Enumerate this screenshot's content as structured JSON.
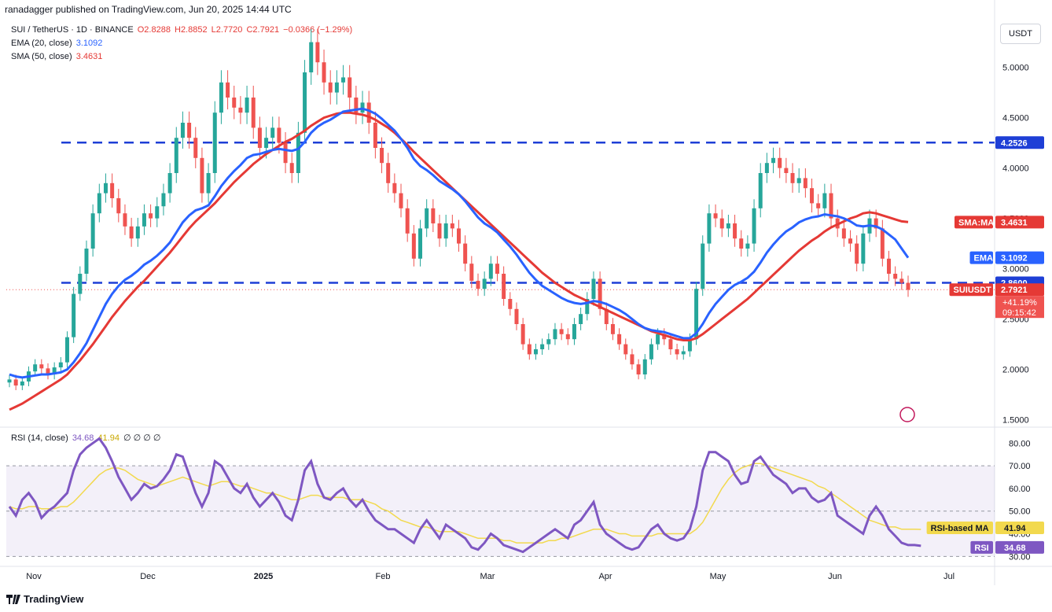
{
  "header": "ranadagger published on TradingView.com, Jun 20, 2025 14:44 UTC",
  "legend": {
    "symbol": "SUI / TetherUS · 1D · BINANCE",
    "open": "O2.8288",
    "high": "H2.8852",
    "low": "L2.7720",
    "close": "C2.7921",
    "change": "−0.0366 (−1.29%)",
    "ema_label": "EMA (20, close)",
    "ema_value": "3.1092",
    "sma_label": "SMA (50, close)",
    "sma_value": "3.4631",
    "rsi_label": "RSI (14, close)",
    "rsi_value": "34.68",
    "rsi_ma_value": "41.94",
    "rsi_extra": "∅ ∅ ∅ ∅"
  },
  "currency": "USDT",
  "footer": "TradingView",
  "colors": {
    "up": "#26a69a",
    "down": "#ef5350",
    "ema": "#2962ff",
    "sma": "#e53935",
    "rsi": "#7e57c2",
    "rsi_ma": "#f2d94e",
    "level": "#1e3fd6"
  },
  "chart_data": {
    "type": "candlestick",
    "x_labels": [
      "Nov",
      "Dec",
      "2025",
      "Feb",
      "Mar",
      "Apr",
      "May",
      "Jun",
      "Jul"
    ],
    "price_ticks": [
      "5.0000",
      "4.5000",
      "4.0000",
      "3.5000",
      "3.0000",
      "2.5000",
      "2.0000",
      "1.5000"
    ],
    "ylim": [
      1.45,
      5.45
    ],
    "horizontal_levels": [
      4.2526,
      2.86
    ],
    "tags": [
      {
        "label": "4.2526",
        "value": 4.2526,
        "color": "#1e3fd6"
      },
      {
        "label": "SMA:MA",
        "text": "3.4631",
        "value": 3.4631,
        "color": "#e53935"
      },
      {
        "label": "EMA",
        "text": "3.1092",
        "value": 3.1092,
        "color": "#2962ff"
      },
      {
        "label": "2.8600",
        "value": 2.86,
        "color": "#1e3fd6"
      },
      {
        "label": "SUIUSDT",
        "text": "2.7921",
        "value": 2.7921,
        "color": "#e53935"
      }
    ],
    "last_price_extra": [
      "+41.19%",
      "09:15:42"
    ],
    "close_series": [
      1.9,
      1.84,
      1.88,
      1.98,
      2.05,
      2.01,
      1.95,
      2.02,
      2.07,
      2.32,
      2.75,
      2.95,
      3.2,
      3.55,
      3.75,
      3.85,
      3.7,
      3.55,
      3.42,
      3.3,
      3.42,
      3.55,
      3.5,
      3.62,
      3.75,
      3.95,
      4.3,
      4.45,
      4.3,
      4.1,
      3.75,
      3.95,
      4.55,
      4.85,
      4.7,
      4.6,
      4.55,
      4.7,
      4.4,
      4.2,
      4.3,
      4.4,
      4.25,
      4.05,
      3.95,
      4.35,
      4.95,
      5.25,
      5.05,
      4.85,
      4.75,
      4.85,
      4.9,
      4.7,
      4.55,
      4.65,
      4.45,
      4.2,
      4.05,
      3.85,
      3.75,
      3.6,
      3.35,
      3.1,
      3.4,
      3.6,
      3.45,
      3.3,
      3.45,
      3.4,
      3.25,
      3.05,
      2.88,
      2.8,
      2.9,
      3.05,
      2.95,
      2.7,
      2.6,
      2.45,
      2.25,
      2.15,
      2.2,
      2.25,
      2.3,
      2.4,
      2.35,
      2.3,
      2.45,
      2.55,
      2.7,
      2.9,
      2.6,
      2.45,
      2.35,
      2.25,
      2.15,
      2.05,
      1.95,
      2.1,
      2.25,
      2.35,
      2.3,
      2.2,
      2.15,
      2.18,
      2.3,
      2.8,
      3.25,
      3.55,
      3.5,
      3.4,
      3.45,
      3.3,
      3.2,
      3.25,
      3.6,
      3.95,
      4.05,
      4.1,
      4.0,
      3.95,
      3.85,
      3.9,
      3.8,
      3.65,
      3.6,
      3.75,
      3.5,
      3.4,
      3.3,
      3.25,
      3.05,
      3.35,
      3.5,
      3.4,
      3.1,
      2.95,
      2.9,
      2.86,
      2.79
    ],
    "ema_series": [
      1.95,
      1.93,
      1.92,
      1.93,
      1.94,
      1.95,
      1.95,
      1.96,
      1.97,
      2.0,
      2.07,
      2.16,
      2.26,
      2.39,
      2.52,
      2.65,
      2.75,
      2.83,
      2.89,
      2.93,
      2.98,
      3.04,
      3.08,
      3.13,
      3.19,
      3.26,
      3.36,
      3.46,
      3.53,
      3.58,
      3.6,
      3.63,
      3.72,
      3.82,
      3.9,
      3.97,
      4.03,
      4.1,
      4.13,
      4.14,
      4.16,
      4.18,
      4.19,
      4.18,
      4.17,
      4.19,
      4.26,
      4.35,
      4.41,
      4.45,
      4.48,
      4.52,
      4.56,
      4.57,
      4.58,
      4.59,
      4.57,
      4.54,
      4.49,
      4.43,
      4.37,
      4.29,
      4.2,
      4.09,
      4.02,
      3.98,
      3.93,
      3.87,
      3.83,
      3.79,
      3.74,
      3.67,
      3.59,
      3.51,
      3.45,
      3.41,
      3.36,
      3.29,
      3.22,
      3.14,
      3.05,
      2.96,
      2.89,
      2.83,
      2.79,
      2.75,
      2.71,
      2.68,
      2.66,
      2.65,
      2.66,
      2.68,
      2.67,
      2.65,
      2.62,
      2.59,
      2.55,
      2.5,
      2.45,
      2.41,
      2.39,
      2.38,
      2.37,
      2.35,
      2.33,
      2.31,
      2.31,
      2.36,
      2.45,
      2.56,
      2.65,
      2.72,
      2.79,
      2.84,
      2.87,
      2.91,
      2.97,
      3.06,
      3.16,
      3.24,
      3.31,
      3.37,
      3.41,
      3.46,
      3.49,
      3.51,
      3.52,
      3.54,
      3.53,
      3.52,
      3.5,
      3.47,
      3.43,
      3.42,
      3.43,
      3.42,
      3.39,
      3.34,
      3.29,
      3.2,
      3.1092
    ],
    "sma_series": [
      1.6,
      1.63,
      1.66,
      1.7,
      1.74,
      1.78,
      1.82,
      1.86,
      1.9,
      1.95,
      2.02,
      2.09,
      2.17,
      2.25,
      2.34,
      2.43,
      2.52,
      2.6,
      2.68,
      2.75,
      2.82,
      2.88,
      2.95,
      3.02,
      3.09,
      3.16,
      3.24,
      3.32,
      3.4,
      3.47,
      3.53,
      3.59,
      3.65,
      3.72,
      3.79,
      3.86,
      3.92,
      3.98,
      4.04,
      4.09,
      4.14,
      4.18,
      4.22,
      4.26,
      4.29,
      4.33,
      4.37,
      4.42,
      4.46,
      4.5,
      4.52,
      4.54,
      4.55,
      4.55,
      4.54,
      4.53,
      4.51,
      4.48,
      4.44,
      4.4,
      4.35,
      4.29,
      4.23,
      4.16,
      4.1,
      4.04,
      3.98,
      3.92,
      3.86,
      3.8,
      3.74,
      3.68,
      3.62,
      3.56,
      3.5,
      3.44,
      3.38,
      3.32,
      3.26,
      3.2,
      3.14,
      3.08,
      3.02,
      2.96,
      2.91,
      2.86,
      2.82,
      2.78,
      2.74,
      2.71,
      2.68,
      2.65,
      2.62,
      2.59,
      2.56,
      2.53,
      2.5,
      2.47,
      2.44,
      2.41,
      2.38,
      2.36,
      2.34,
      2.32,
      2.3,
      2.29,
      2.29,
      2.31,
      2.35,
      2.4,
      2.45,
      2.5,
      2.55,
      2.6,
      2.65,
      2.7,
      2.76,
      2.82,
      2.88,
      2.94,
      3.0,
      3.06,
      3.12,
      3.18,
      3.23,
      3.28,
      3.32,
      3.37,
      3.41,
      3.44,
      3.47,
      3.5,
      3.52,
      3.55,
      3.56,
      3.55,
      3.53,
      3.51,
      3.49,
      3.47,
      3.4631
    ],
    "rsi": {
      "ticks": [
        "80.00",
        "70.00",
        "60.00",
        "50.00",
        "40.00",
        "30.00"
      ],
      "band": [
        30,
        70
      ],
      "ylim": [
        27,
        86
      ],
      "tags": [
        {
          "label": "RSI-based MA",
          "text": "41.94",
          "value": 41.94
        },
        {
          "label": "RSI",
          "text": "34.68",
          "value": 34.68
        }
      ],
      "rsi_series": [
        52,
        48,
        55,
        58,
        54,
        47,
        50,
        52,
        55,
        58,
        68,
        75,
        78,
        80,
        82,
        78,
        72,
        65,
        60,
        55,
        58,
        62,
        60,
        61,
        64,
        68,
        75,
        74,
        66,
        58,
        52,
        58,
        72,
        70,
        65,
        60,
        58,
        62,
        56,
        52,
        55,
        58,
        54,
        48,
        46,
        55,
        68,
        72,
        62,
        56,
        55,
        58,
        60,
        55,
        52,
        55,
        50,
        46,
        44,
        42,
        42,
        40,
        38,
        36,
        42,
        46,
        42,
        38,
        44,
        42,
        40,
        38,
        34,
        33,
        36,
        40,
        38,
        35,
        34,
        33,
        32,
        34,
        36,
        38,
        40,
        42,
        40,
        38,
        44,
        46,
        50,
        54,
        44,
        40,
        38,
        36,
        34,
        33,
        34,
        38,
        42,
        44,
        40,
        38,
        37,
        38,
        42,
        52,
        68,
        76,
        76,
        74,
        72,
        66,
        62,
        63,
        72,
        74,
        70,
        66,
        64,
        62,
        58,
        60,
        60,
        56,
        54,
        55,
        58,
        48,
        46,
        44,
        42,
        40,
        48,
        52,
        48,
        42,
        39,
        36,
        35,
        35,
        34.68
      ],
      "ma_series": [
        52,
        51,
        51,
        52,
        52,
        51,
        51,
        51,
        52,
        52,
        54,
        57,
        60,
        63,
        66,
        68,
        69,
        69,
        68,
        66,
        64,
        63,
        62,
        61,
        62,
        63,
        64,
        65,
        64,
        63,
        62,
        61,
        62,
        63,
        63,
        62,
        61,
        61,
        60,
        59,
        58,
        58,
        57,
        56,
        55,
        55,
        56,
        57,
        57,
        56,
        56,
        56,
        56,
        55,
        55,
        55,
        54,
        53,
        51,
        50,
        48,
        46,
        45,
        44,
        43,
        43,
        42,
        41,
        41,
        41,
        41,
        40,
        39,
        38,
        38,
        38,
        38,
        37,
        37,
        36,
        36,
        36,
        36,
        36,
        37,
        37,
        38,
        38,
        39,
        40,
        41,
        42,
        42,
        42,
        41,
        40,
        40,
        39,
        39,
        39,
        39,
        40,
        40,
        40,
        40,
        40,
        40,
        42,
        45,
        50,
        55,
        60,
        64,
        67,
        69,
        70,
        71,
        71,
        70,
        69,
        68,
        67,
        66,
        65,
        64,
        63,
        61,
        60,
        58,
        56,
        54,
        52,
        50,
        48,
        46,
        45,
        44,
        43,
        43,
        42,
        42,
        42,
        41.94
      ]
    }
  }
}
